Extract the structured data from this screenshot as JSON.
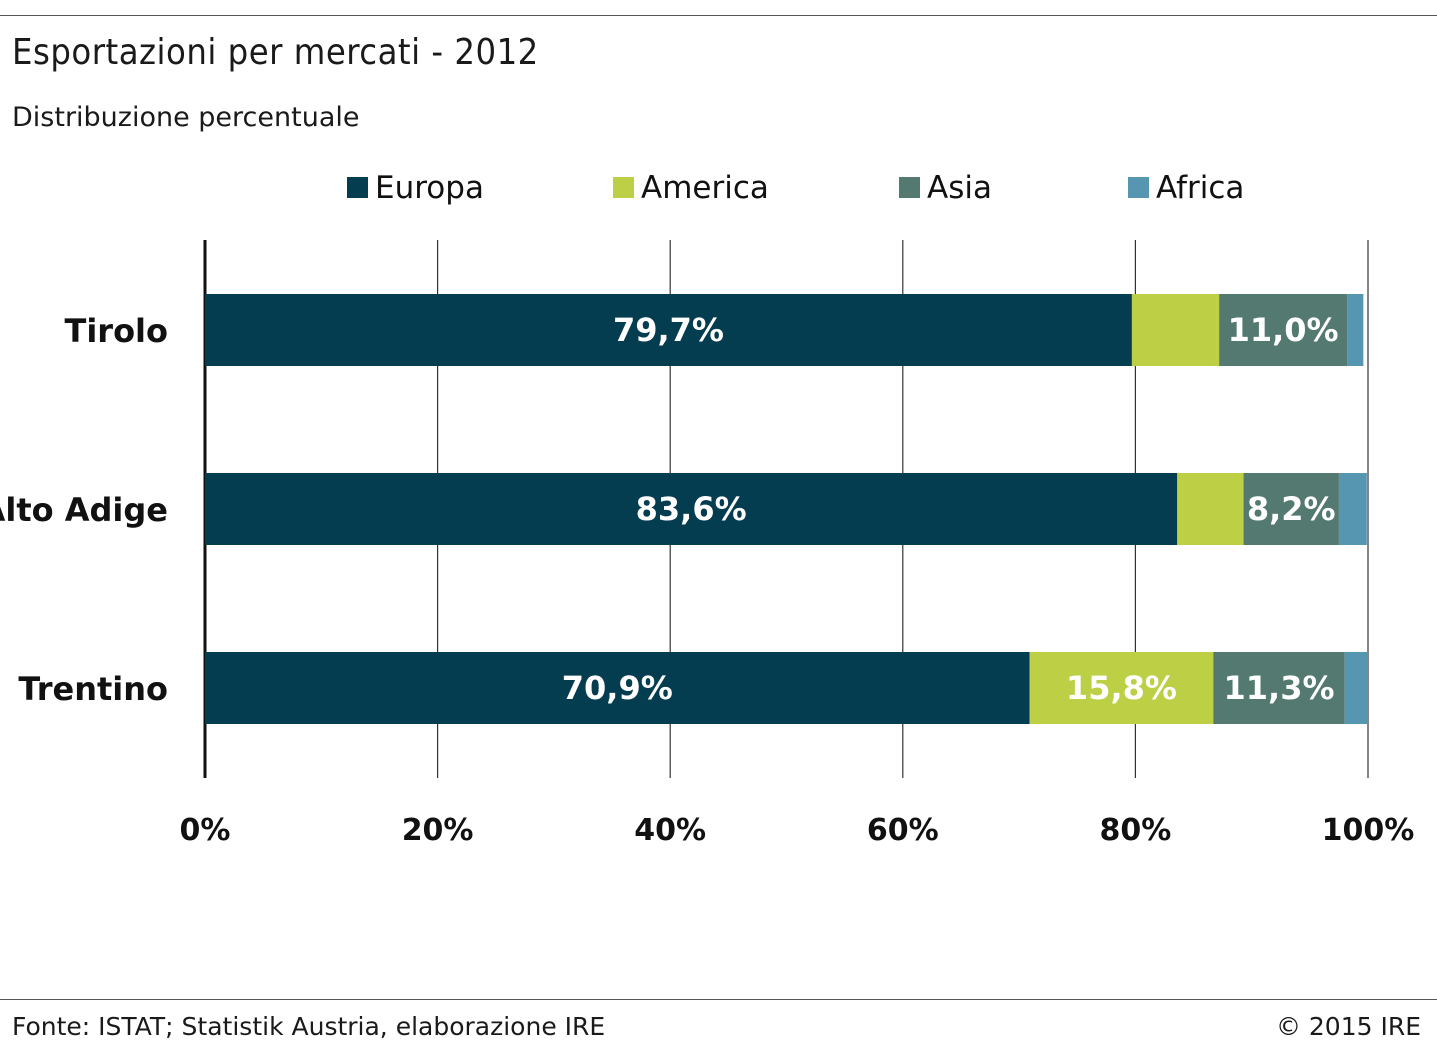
{
  "header": {
    "title": "Esportazioni per mercati - 2012",
    "subtitle": "Distribuzione percentuale"
  },
  "footer": {
    "source": "Fonte: ISTAT; Statistik Austria, elaborazione IRE",
    "copyright": "© 2015 IRE"
  },
  "chart_data": {
    "type": "bar",
    "orientation": "horizontal",
    "stacked": true,
    "title": "Esportazioni per mercati - 2012",
    "subtitle": "Distribuzione percentuale",
    "categories": [
      "Tirolo",
      "Alto Adige",
      "Trentino"
    ],
    "series": [
      {
        "name": "Europa",
        "color": "#043c50",
        "values": [
          79.7,
          83.6,
          70.9
        ],
        "labels": [
          "79,7%",
          "83,6%",
          "70,9%"
        ]
      },
      {
        "name": "America",
        "color": "#bdcf45",
        "values": [
          7.5,
          5.7,
          15.8
        ],
        "labels": [
          "",
          "",
          "15,8%"
        ]
      },
      {
        "name": "Asia",
        "color": "#537970",
        "values": [
          11.0,
          8.2,
          11.3
        ],
        "labels": [
          "11,0%",
          "8,2%",
          "11,3%"
        ]
      },
      {
        "name": "Africa",
        "color": "#5696b0",
        "values": [
          1.4,
          2.4,
          2.0
        ],
        "labels": [
          "",
          "",
          ""
        ]
      }
    ],
    "xlim": [
      0,
      100
    ],
    "xticks": [
      "0%",
      "20%",
      "40%",
      "60%",
      "80%",
      "100%"
    ],
    "grid": true,
    "legend": "top"
  }
}
